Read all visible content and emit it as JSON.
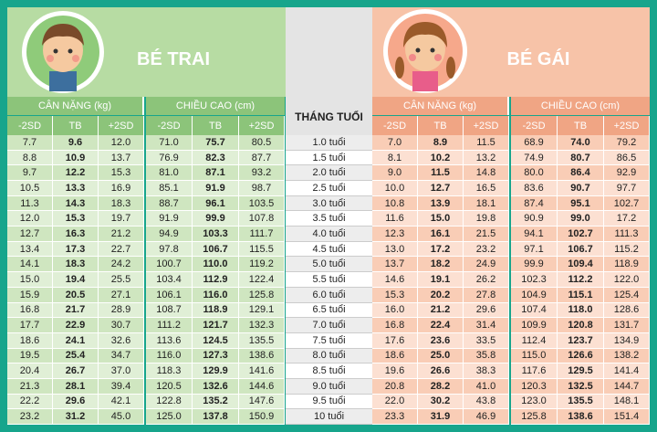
{
  "boys": {
    "title": "BÉ TRAI",
    "weight_label": "CÂN NẶNG (kg)",
    "height_label": "CHIỀU CAO (cm)",
    "columns": [
      "-2SD",
      "TB",
      "+2SD",
      "-2SD",
      "TB",
      "+2SD"
    ]
  },
  "girls": {
    "title": "BÉ GÁI",
    "weight_label": "CÂN NẶNG (kg)",
    "height_label": "CHIỀU CAO (cm)",
    "columns": [
      "-2SD",
      "TB",
      "+2SD",
      "-2SD",
      "TB",
      "+2SD"
    ]
  },
  "age_header": "THÁNG TUỔI",
  "rows": [
    {
      "age": "1.0 tuổi",
      "boys": [
        "7.7",
        "9.6",
        "12.0",
        "71.0",
        "75.7",
        "80.5"
      ],
      "girls": [
        "7.0",
        "8.9",
        "11.5",
        "68.9",
        "74.0",
        "79.2"
      ]
    },
    {
      "age": "1.5 tuổi",
      "boys": [
        "8.8",
        "10.9",
        "13.7",
        "76.9",
        "82.3",
        "87.7"
      ],
      "girls": [
        "8.1",
        "10.2",
        "13.2",
        "74.9",
        "80.7",
        "86.5"
      ]
    },
    {
      "age": "2.0 tuổi",
      "boys": [
        "9.7",
        "12.2",
        "15.3",
        "81.0",
        "87.1",
        "93.2"
      ],
      "girls": [
        "9.0",
        "11.5",
        "14.8",
        "80.0",
        "86.4",
        "92.9"
      ]
    },
    {
      "age": "2.5 tuổi",
      "boys": [
        "10.5",
        "13.3",
        "16.9",
        "85.1",
        "91.9",
        "98.7"
      ],
      "girls": [
        "10.0",
        "12.7",
        "16.5",
        "83.6",
        "90.7",
        "97.7"
      ]
    },
    {
      "age": "3.0 tuổi",
      "boys": [
        "11.3",
        "14.3",
        "18.3",
        "88.7",
        "96.1",
        "103.5"
      ],
      "girls": [
        "10.8",
        "13.9",
        "18.1",
        "87.4",
        "95.1",
        "102.7"
      ]
    },
    {
      "age": "3.5 tuổi",
      "boys": [
        "12.0",
        "15.3",
        "19.7",
        "91.9",
        "99.9",
        "107.8"
      ],
      "girls": [
        "11.6",
        "15.0",
        "19.8",
        "90.9",
        "99.0",
        "17.2"
      ]
    },
    {
      "age": "4.0 tuổi",
      "boys": [
        "12.7",
        "16.3",
        "21.2",
        "94.9",
        "103.3",
        "111.7"
      ],
      "girls": [
        "12.3",
        "16.1",
        "21.5",
        "94.1",
        "102.7",
        "111.3"
      ]
    },
    {
      "age": "4.5 tuổi",
      "boys": [
        "13.4",
        "17.3",
        "22.7",
        "97.8",
        "106.7",
        "115.5"
      ],
      "girls": [
        "13.0",
        "17.2",
        "23.2",
        "97.1",
        "106.7",
        "115.2"
      ]
    },
    {
      "age": "5.0 tuổi",
      "boys": [
        "14.1",
        "18.3",
        "24.2",
        "100.7",
        "110.0",
        "119.2"
      ],
      "girls": [
        "13.7",
        "18.2",
        "24.9",
        "99.9",
        "109.4",
        "118.9"
      ]
    },
    {
      "age": "5.5 tuổi",
      "boys": [
        "15.0",
        "19.4",
        "25.5",
        "103.4",
        "112.9",
        "122.4"
      ],
      "girls": [
        "14.6",
        "19.1",
        "26.2",
        "102.3",
        "112.2",
        "122.0"
      ]
    },
    {
      "age": "6.0 tuổi",
      "boys": [
        "15.9",
        "20.5",
        "27.1",
        "106.1",
        "116.0",
        "125.8"
      ],
      "girls": [
        "15.3",
        "20.2",
        "27.8",
        "104.9",
        "115.1",
        "125.4"
      ]
    },
    {
      "age": "6.5 tuổi",
      "boys": [
        "16.8",
        "21.7",
        "28.9",
        "108.7",
        "118.9",
        "129.1"
      ],
      "girls": [
        "16.0",
        "21.2",
        "29.6",
        "107.4",
        "118.0",
        "128.6"
      ]
    },
    {
      "age": "7.0 tuổi",
      "boys": [
        "17.7",
        "22.9",
        "30.7",
        "111.2",
        "121.7",
        "132.3"
      ],
      "girls": [
        "16.8",
        "22.4",
        "31.4",
        "109.9",
        "120.8",
        "131.7"
      ]
    },
    {
      "age": "7.5 tuổi",
      "boys": [
        "18.6",
        "24.1",
        "32.6",
        "113.6",
        "124.5",
        "135.5"
      ],
      "girls": [
        "17.6",
        "23.6",
        "33.5",
        "112.4",
        "123.7",
        "134.9"
      ]
    },
    {
      "age": "8.0 tuổi",
      "boys": [
        "19.5",
        "25.4",
        "34.7",
        "116.0",
        "127.3",
        "138.6"
      ],
      "girls": [
        "18.6",
        "25.0",
        "35.8",
        "115.0",
        "126.6",
        "138.2"
      ]
    },
    {
      "age": "8.5 tuổi",
      "boys": [
        "20.4",
        "26.7",
        "37.0",
        "118.3",
        "129.9",
        "141.6"
      ],
      "girls": [
        "19.6",
        "26.6",
        "38.3",
        "117.6",
        "129.5",
        "141.4"
      ]
    },
    {
      "age": "9.0 tuổi",
      "boys": [
        "21.3",
        "28.1",
        "39.4",
        "120.5",
        "132.6",
        "144.6"
      ],
      "girls": [
        "20.8",
        "28.2",
        "41.0",
        "120.3",
        "132.5",
        "144.7"
      ]
    },
    {
      "age": "9.5 tuổi",
      "boys": [
        "22.2",
        "29.6",
        "42.1",
        "122.8",
        "135.2",
        "147.6"
      ],
      "girls": [
        "22.0",
        "30.2",
        "43.8",
        "123.0",
        "135.5",
        "148.1"
      ]
    },
    {
      "age": "10 tuổi",
      "boys": [
        "23.2",
        "31.2",
        "45.0",
        "125.0",
        "137.8",
        "150.9"
      ],
      "girls": [
        "23.3",
        "31.9",
        "46.9",
        "125.8",
        "138.6",
        "151.4"
      ]
    }
  ]
}
